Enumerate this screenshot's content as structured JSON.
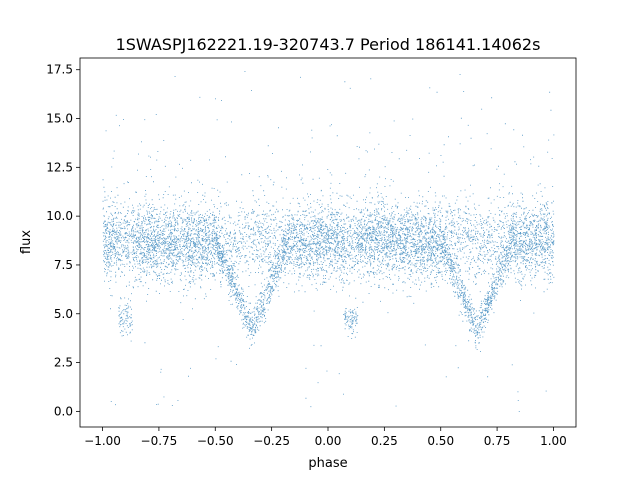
{
  "chart_data": {
    "type": "scatter",
    "title": "1SWASPJ162221.19-320743.7 Period 186141.14062s",
    "xlabel": "phase",
    "ylabel": "flux",
    "xlim": [
      -1.1,
      1.1
    ],
    "ylim": [
      -0.8,
      18.1
    ],
    "x_ticks": [
      -1.0,
      -0.75,
      -0.5,
      -0.25,
      0.0,
      0.25,
      0.5,
      0.75,
      1.0
    ],
    "x_tick_labels": [
      "−1.00",
      "−0.75",
      "−0.50",
      "−0.25",
      "0.00",
      "0.25",
      "0.50",
      "0.75",
      "1.00"
    ],
    "y_ticks": [
      0.0,
      2.5,
      5.0,
      7.5,
      10.0,
      12.5,
      15.0,
      17.5
    ],
    "y_tick_labels": [
      "0.0",
      "2.5",
      "5.0",
      "7.5",
      "10.0",
      "12.5",
      "15.0",
      "17.5"
    ],
    "grid": false,
    "point_color": "#1f77b4",
    "phase_range": [
      -1.0,
      1.0
    ],
    "baseline_flux": 8.7,
    "baseline_scatter": 1.0,
    "primary_eclipse_center_phase": -0.34,
    "primary_eclipse_center_phase_repeat": 0.66,
    "primary_eclipse_min_flux": 4.2,
    "eclipse_half_width_phase": 0.16,
    "secondary_dip_phases": [
      -0.9,
      0.1
    ],
    "secondary_dip_min_flux": 4.8,
    "outlier_flux_max": 17.7,
    "outlier_flux_min": 0.0,
    "approx_point_count": 36000
  }
}
